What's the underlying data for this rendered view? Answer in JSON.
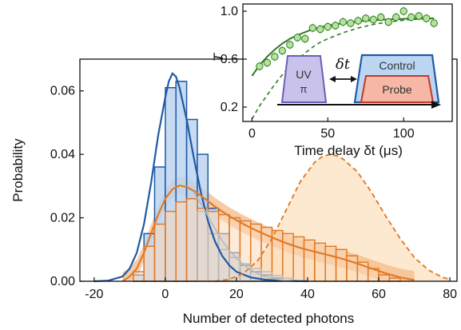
{
  "chart_data": [
    {
      "type": "bar",
      "xlabel": "Number of detected photons",
      "ylabel": "Probability",
      "xlim": [
        -24,
        82
      ],
      "ylim": [
        0,
        0.07
      ],
      "xticks": [
        -20,
        0,
        20,
        40,
        60,
        80
      ],
      "yticks": [
        "0.00",
        "0.02",
        "0.04",
        "0.06"
      ],
      "bin_width": 3,
      "colors": {
        "blue": "#1f5aa6",
        "blue_fill": "#bcd3ee",
        "orange": "#e07b28",
        "orange_fill": "#fbd9b8",
        "orange_band": "#f6b98a",
        "peach_area": "#fde9cf",
        "gray": "#b8b8b8"
      },
      "series": [
        {
          "style": "histogram",
          "color": "blue",
          "bin_starts": [
            -9,
            -6,
            -3,
            0,
            3,
            6,
            9,
            12,
            15,
            18,
            21,
            24,
            27,
            30
          ],
          "values": [
            0.002,
            0.015,
            0.036,
            0.061,
            0.063,
            0.051,
            0.04,
            0.023,
            0.015,
            0.009,
            0.005,
            0.003,
            0.002,
            0.001
          ]
        },
        {
          "style": "histogram",
          "color": "orange",
          "bin_starts": [
            -9,
            -6,
            -3,
            0,
            3,
            6,
            9,
            12,
            15,
            18,
            21,
            24,
            27,
            30,
            33,
            36,
            39,
            42,
            45,
            48,
            51,
            54,
            57,
            60,
            63
          ],
          "values": [
            0.003,
            0.011,
            0.018,
            0.022,
            0.025,
            0.026,
            0.023,
            0.022,
            0.021,
            0.02,
            0.019,
            0.018,
            0.017,
            0.016,
            0.015,
            0.014,
            0.013,
            0.012,
            0.011,
            0.01,
            0.008,
            0.006,
            0.004,
            0.002,
            0.001
          ]
        },
        {
          "style": "histogram",
          "color": "gray",
          "bin_starts": [
            9,
            12,
            15,
            18,
            21,
            24,
            27,
            30,
            33
          ],
          "values": [
            0.022,
            0.015,
            0.01,
            0.0075,
            0.0055,
            0.004,
            0.003,
            0.0018,
            0.001
          ]
        },
        {
          "style": "line",
          "color": "blue",
          "x": [
            -20,
            -16,
            -12,
            -10,
            -8,
            -6,
            -4,
            -2,
            0,
            1,
            2,
            3,
            4,
            6,
            8,
            10,
            12,
            14,
            16,
            18,
            20,
            24,
            28,
            32,
            36,
            40
          ],
          "y": [
            0,
            0.0002,
            0.0015,
            0.004,
            0.009,
            0.018,
            0.031,
            0.046,
            0.058,
            0.063,
            0.0655,
            0.0645,
            0.061,
            0.051,
            0.039,
            0.028,
            0.019,
            0.0125,
            0.008,
            0.005,
            0.003,
            0.0012,
            0.0005,
            0.0002,
            0.0001,
            0
          ]
        },
        {
          "style": "line",
          "color": "orange",
          "x": [
            -12,
            -10,
            -8,
            -6,
            -4,
            -2,
            0,
            2,
            4,
            6,
            8,
            10,
            14,
            18,
            22,
            26,
            30,
            34,
            38,
            42,
            46,
            50,
            54,
            58,
            62,
            66,
            70
          ],
          "y": [
            0,
            0.0015,
            0.004,
            0.009,
            0.015,
            0.021,
            0.026,
            0.029,
            0.0302,
            0.0297,
            0.0285,
            0.027,
            0.0235,
            0.0205,
            0.018,
            0.0158,
            0.0138,
            0.012,
            0.0105,
            0.0093,
            0.0082,
            0.007,
            0.0056,
            0.004,
            0.0025,
            0.0012,
            0.0004
          ],
          "band": 0.0028
        },
        {
          "style": "dashed-area",
          "color": "orange",
          "x": [
            14,
            18,
            22,
            26,
            30,
            34,
            38,
            42,
            44,
            46,
            48,
            50,
            54,
            58,
            62,
            66,
            70,
            74,
            78,
            80
          ],
          "y": [
            0,
            0.0006,
            0.0025,
            0.0065,
            0.0135,
            0.0225,
            0.0315,
            0.0375,
            0.0392,
            0.0399,
            0.0396,
            0.0385,
            0.0345,
            0.028,
            0.0205,
            0.0135,
            0.0075,
            0.0035,
            0.0012,
            0.0006
          ]
        },
        {
          "style": "line",
          "color": "gray",
          "x": [
            8,
            10,
            12,
            14,
            16,
            18,
            20,
            22,
            24,
            26,
            28,
            30,
            32,
            34,
            36
          ],
          "y": [
            0.028,
            0.0245,
            0.0205,
            0.0165,
            0.0128,
            0.0098,
            0.0073,
            0.0052,
            0.0036,
            0.0024,
            0.0015,
            0.0009,
            0.0005,
            0.0002,
            0
          ]
        }
      ]
    },
    {
      "type": "scatter",
      "xlabel": "Time delay δt (μs)",
      "ylabel": "T",
      "xlim": [
        -6,
        132
      ],
      "ylim": [
        0.08,
        1.06
      ],
      "xticks": [
        0,
        50,
        100
      ],
      "yticks": [
        "0.2",
        "0.6",
        "1.0"
      ],
      "points": {
        "x": [
          5,
          10,
          15,
          20,
          25,
          30,
          35,
          40,
          45,
          50,
          55,
          60,
          65,
          70,
          75,
          80,
          85,
          90,
          95,
          100,
          105,
          110,
          115,
          120
        ],
        "y": [
          0.54,
          0.57,
          0.62,
          0.67,
          0.72,
          0.78,
          0.77,
          0.86,
          0.85,
          0.87,
          0.88,
          0.91,
          0.9,
          0.92,
          0.94,
          0.93,
          0.95,
          0.91,
          0.95,
          1.0,
          0.95,
          0.96,
          0.94,
          0.9
        ],
        "err": 0.035
      },
      "fit_solid": {
        "x": [
          0,
          5,
          10,
          15,
          20,
          25,
          30,
          40,
          50,
          60,
          70,
          80,
          90,
          100,
          110,
          120
        ],
        "y": [
          0.46,
          0.55,
          0.62,
          0.68,
          0.73,
          0.77,
          0.8,
          0.85,
          0.88,
          0.9,
          0.915,
          0.925,
          0.932,
          0.936,
          0.938,
          0.94
        ]
      },
      "fit_dashed": {
        "x": [
          0,
          5,
          10,
          15,
          20,
          25,
          30,
          35,
          40,
          45,
          50,
          60,
          70,
          80,
          90,
          100,
          110,
          120
        ],
        "y": [
          0.1,
          0.21,
          0.3,
          0.39,
          0.47,
          0.54,
          0.6,
          0.65,
          0.7,
          0.74,
          0.77,
          0.82,
          0.86,
          0.89,
          0.91,
          0.925,
          0.935,
          0.94
        ]
      },
      "colors": {
        "green": "#2e7d22",
        "point_fill": "#b5e39c"
      }
    }
  ],
  "schematic": {
    "uv_label": "UV",
    "pi_label": "π",
    "delay_label": "δt",
    "control_label": "Control",
    "probe_label": "Probe",
    "colors": {
      "uv_fill": "#c9c3ec",
      "uv_stroke": "#6a5fb5",
      "control_fill": "#bcd6f2",
      "control_stroke": "#1f5aa6",
      "probe_fill": "#f6b7a6",
      "probe_stroke": "#c0392b"
    }
  }
}
